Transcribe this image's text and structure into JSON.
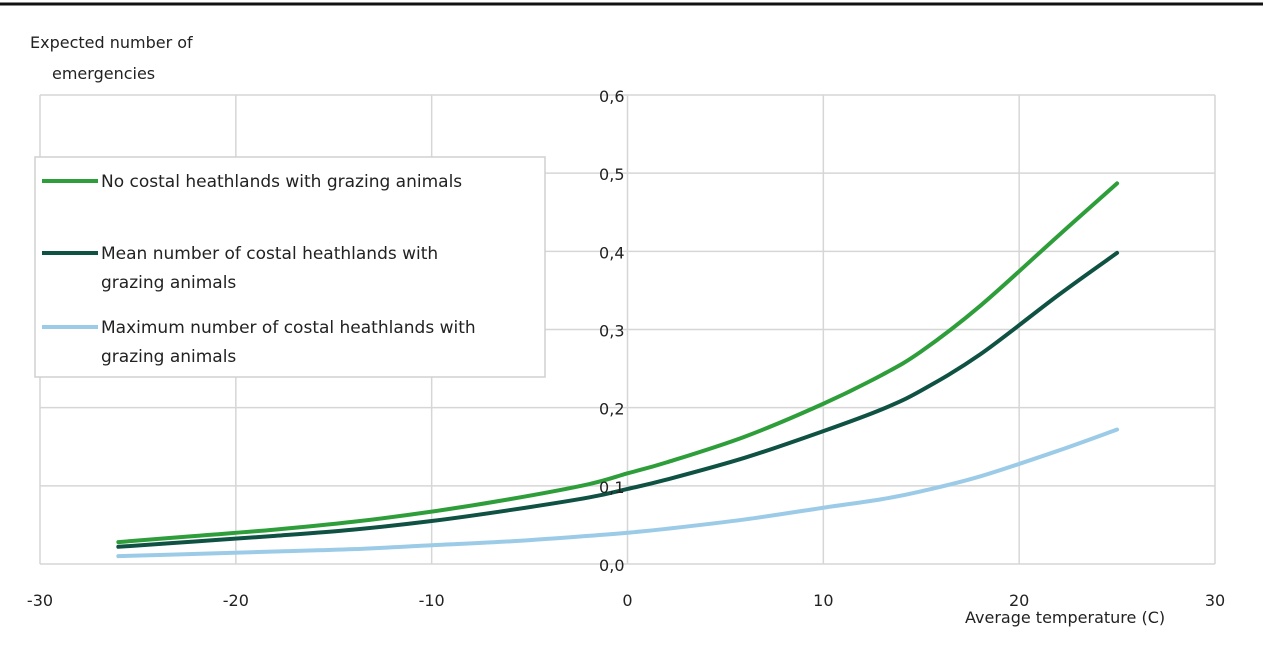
{
  "chart_data": {
    "type": "line",
    "ylabel_lines": [
      "Expected number of",
      "emergencies"
    ],
    "xlabel": "Average temperature (C)",
    "xlim": [
      -30,
      30
    ],
    "ylim": [
      0,
      0.6
    ],
    "x_ticks": [
      "-30",
      "-20",
      "-10",
      "0",
      "10",
      "20",
      "30"
    ],
    "y_ticks": [
      "0,0",
      "0,1",
      "0,2",
      "0,3",
      "0,4",
      "0,5",
      "0,6"
    ],
    "grid": true,
    "legend_position": "top-left",
    "series": [
      {
        "name": "No costal heathlands with grazing animals",
        "color": "#2e9e3a",
        "legend_lines": [
          "No costal heathlands with grazing animals"
        ],
        "x": [
          -26,
          -22,
          -18,
          -14,
          -10,
          -6,
          -2,
          0,
          2,
          6,
          10,
          13,
          15,
          18,
          22,
          25
        ],
        "y": [
          0.028,
          0.036,
          0.044,
          0.054,
          0.067,
          0.083,
          0.102,
          0.116,
          0.13,
          0.163,
          0.205,
          0.242,
          0.272,
          0.33,
          0.42,
          0.487
        ]
      },
      {
        "name": "Mean number of costal heathlands with grazing animals",
        "color": "#0f5243",
        "legend_lines": [
          "Mean number of costal heathlands with",
          "grazing animals"
        ],
        "x": [
          -26,
          -22,
          -18,
          -14,
          -10,
          -6,
          -2,
          0,
          2,
          6,
          10,
          13,
          15,
          18,
          22,
          25
        ],
        "y": [
          0.022,
          0.029,
          0.036,
          0.044,
          0.055,
          0.069,
          0.085,
          0.096,
          0.108,
          0.136,
          0.17,
          0.198,
          0.222,
          0.268,
          0.344,
          0.398
        ]
      },
      {
        "name": "Maximum number of costal heathlands with grazing animals",
        "color": "#9ccbe8",
        "legend_lines": [
          "Maximum number of costal heathlands with",
          "grazing animals"
        ],
        "x": [
          -26,
          -22,
          -18,
          -14,
          -10,
          -6,
          -2,
          0,
          2,
          6,
          10,
          13,
          15,
          18,
          22,
          25
        ],
        "y": [
          0.01,
          0.013,
          0.016,
          0.019,
          0.024,
          0.029,
          0.036,
          0.04,
          0.045,
          0.057,
          0.072,
          0.083,
          0.093,
          0.112,
          0.145,
          0.172
        ]
      }
    ]
  }
}
